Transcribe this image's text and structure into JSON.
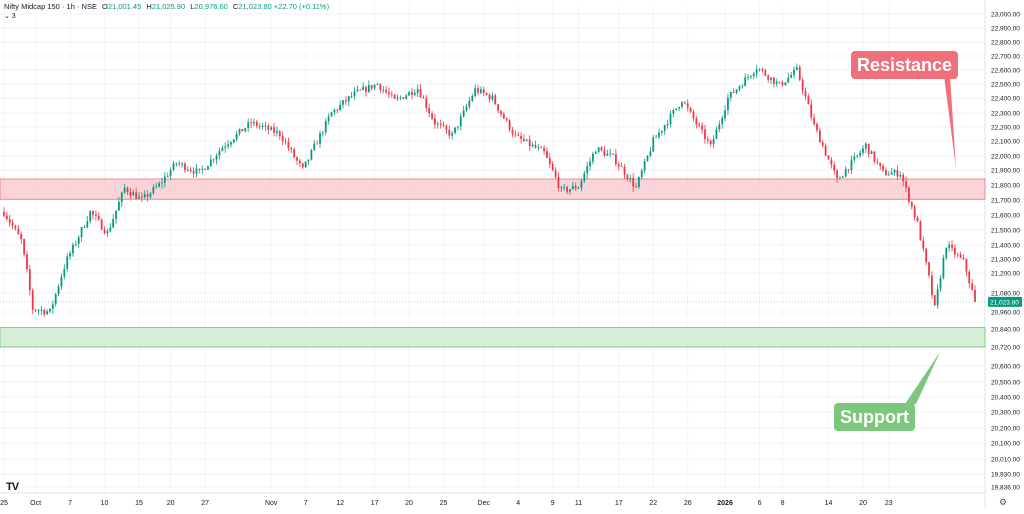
{
  "legend": {
    "symbol": "Nifty Midcap 150 · 1h · NSE",
    "o_label": "O",
    "o": "21,001.45",
    "h_label": "H",
    "h": "21,025.90",
    "l_label": "L",
    "l": "20,976.60",
    "c_label": "C",
    "c": "21,023.80",
    "change": "+22.70 (+0.11%)",
    "indicator_toggle": "⌄ 3"
  },
  "annotations": {
    "resistance": "Resistance",
    "support": "Support"
  },
  "colors": {
    "up": "#089981",
    "down": "#f23645",
    "resistance_zone": "#f7c5cb",
    "support_zone": "#cdebcf",
    "resistance_label": "#ef6f7a",
    "support_label": "#7cc67e",
    "price_tag": "#089981"
  },
  "chart_data": {
    "type": "candlestick",
    "title": "Nifty Midcap 150 · 1h · NSE",
    "ylim": [
      19836,
      23100
    ],
    "y_ticks": [
      "23,000.00",
      "22,900.00",
      "22,800.00",
      "22,700.00",
      "22,600.00",
      "22,500.00",
      "22,400.00",
      "22,300.00",
      "22,200.00",
      "22,100.00",
      "22,000.00",
      "21,900.00",
      "21,800.00",
      "21,700.00",
      "21,600.00",
      "21,500.00",
      "21,400.00",
      "21,300.00",
      "21,200.00",
      "21,080.00",
      "20,960.00",
      "20,840.00",
      "20,720.00",
      "20,600.00",
      "20,500.00",
      "20,400.00",
      "20,300.00",
      "20,200.00",
      "20,100.00",
      "20,010.00",
      "19,930.00",
      "19,836.00"
    ],
    "y_tick_values": [
      23000,
      22900,
      22800,
      22700,
      22600,
      22500,
      22400,
      22300,
      22200,
      22100,
      22000,
      21900,
      21800,
      21700,
      21600,
      21500,
      21400,
      21300,
      21200,
      21080,
      20960,
      20840,
      20720,
      20600,
      20500,
      20400,
      20300,
      20200,
      20100,
      20010,
      19930,
      19836
    ],
    "x_ticks": [
      "25",
      "Oct",
      "7",
      "10",
      "15",
      "20",
      "27",
      "Nov",
      "7",
      "12",
      "17",
      "20",
      "25",
      "Dec",
      "4",
      "9",
      "11",
      "17",
      "22",
      "26",
      "2026",
      "6",
      "8",
      "14",
      "20",
      "23"
    ],
    "x_tick_index": [
      0,
      11,
      23,
      35,
      47,
      58,
      70,
      93,
      105,
      117,
      129,
      141,
      153,
      167,
      179,
      191,
      200,
      214,
      226,
      238,
      251,
      263,
      271,
      287,
      299,
      308
    ],
    "last_price": "21,023.80",
    "last_value": 21023.8,
    "resistance_zone": [
      21705,
      21840
    ],
    "support_zone": [
      20720,
      20850
    ],
    "path_knots": [
      [
        0,
        21620
      ],
      [
        6,
        21430
      ],
      [
        10,
        20980
      ],
      [
        16,
        20960
      ],
      [
        22,
        21300
      ],
      [
        30,
        21620
      ],
      [
        36,
        21480
      ],
      [
        42,
        21780
      ],
      [
        48,
        21700
      ],
      [
        54,
        21800
      ],
      [
        60,
        21950
      ],
      [
        68,
        21880
      ],
      [
        76,
        22060
      ],
      [
        86,
        22230
      ],
      [
        96,
        22150
      ],
      [
        104,
        21900
      ],
      [
        114,
        22300
      ],
      [
        122,
        22430
      ],
      [
        130,
        22500
      ],
      [
        136,
        22380
      ],
      [
        144,
        22470
      ],
      [
        150,
        22230
      ],
      [
        156,
        22140
      ],
      [
        164,
        22460
      ],
      [
        170,
        22400
      ],
      [
        178,
        22130
      ],
      [
        188,
        22020
      ],
      [
        194,
        21760
      ],
      [
        200,
        21790
      ],
      [
        206,
        22050
      ],
      [
        212,
        21990
      ],
      [
        220,
        21780
      ],
      [
        226,
        22100
      ],
      [
        236,
        22390
      ],
      [
        246,
        22060
      ],
      [
        252,
        22400
      ],
      [
        262,
        22620
      ],
      [
        270,
        22490
      ],
      [
        276,
        22600
      ],
      [
        282,
        22210
      ],
      [
        290,
        21830
      ],
      [
        300,
        22070
      ],
      [
        306,
        21880
      ],
      [
        312,
        21880
      ],
      [
        318,
        21540
      ],
      [
        324,
        20980
      ],
      [
        328,
        21400
      ],
      [
        334,
        21280
      ],
      [
        338,
        21024
      ]
    ]
  }
}
